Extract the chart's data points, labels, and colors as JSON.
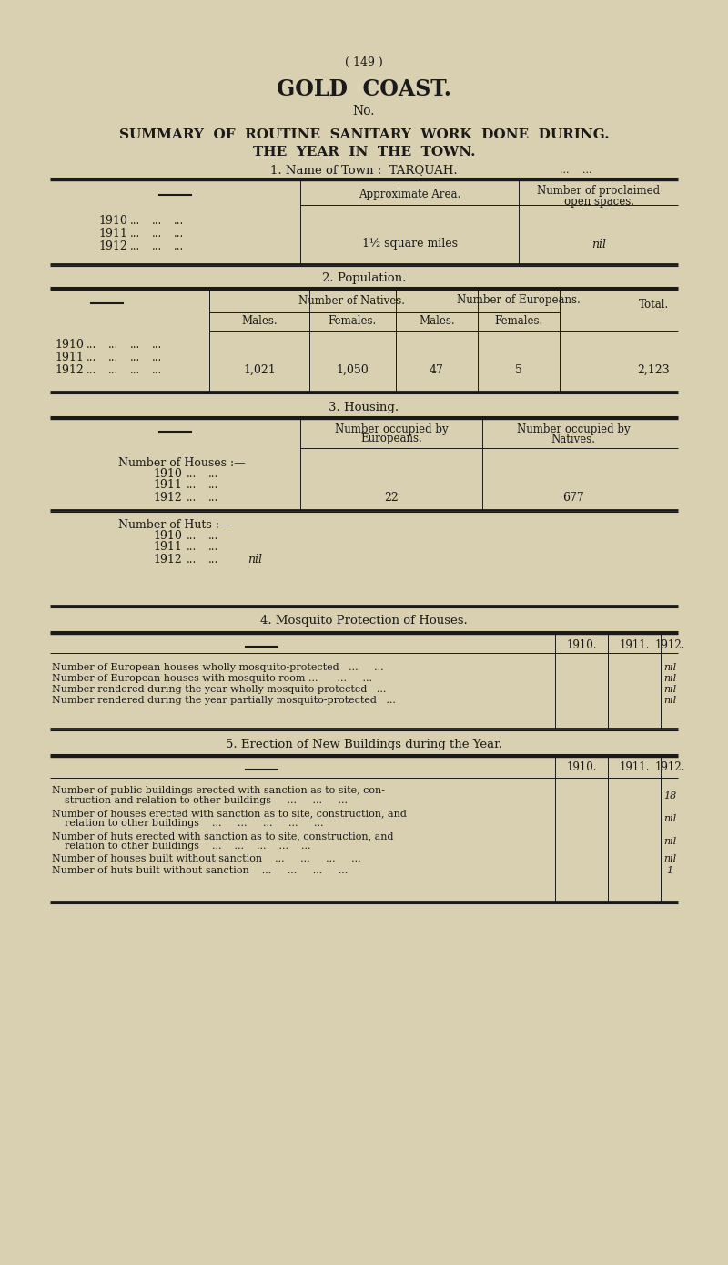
{
  "bg_color": "#d8d0b0",
  "text_color": "#1a1a1a",
  "page_number": "( 149 )",
  "title1": "GOLD  COAST.",
  "title2": "No.",
  "title3": "SUMMARY  OF  ROUTINE  SANITARY  WORK  DONE  DURING.",
  "title4": "THE  YEAR  IN  THE  TOWN.",
  "section1_header": "1. Name of Town :  TARQUAH.",
  "section2_header": "2. Population.",
  "section3_header": "3. Housing.",
  "section4_header": "4. Mosquito Protection of Houses.",
  "section5_header": "5. Erection of New Buildings during the Year.",
  "area_value": "1½ square miles",
  "proclaimed_value": "nil",
  "huts_1912": "nil",
  "houses_1912_euro": "22",
  "houses_1912_native": "677",
  "pop_values": [
    "1,021",
    "1,050",
    "47",
    "5",
    "2,123"
  ],
  "mosq_rows": [
    "Number of European houses wholly mosquito-protected   ...     ...",
    "Number of European houses with mosquito room ...      ...     ...",
    "Number rendered during the year wholly mosquito-protected   ...",
    "Number rendered during the year partially mosquito-protected   ..."
  ],
  "mosq_values": [
    "nil",
    "nil",
    "nil",
    "nil"
  ],
  "erect_row1a": "Number of public buildings erected with sanction as to site, con-",
  "erect_row1b": "    struction and relation to other buildings     ...     ...     ...",
  "erect_row2a": "Number of houses erected with sanction as to site, construction, and",
  "erect_row2b": "    relation to other buildings    ...     ...     ...     ...     ...",
  "erect_row3a": "Number of huts erected with sanction as to site, construction, and",
  "erect_row3b": "    relation to other buildings    ...    ...    ...    ...    ...",
  "erect_row4": "Number of houses built without sanction    ...     ...     ...     ...",
  "erect_row5": "Number of huts built without sanction    ...     ...     ...     ...",
  "erect_values": [
    "18",
    "nil",
    "nil",
    "nil",
    "1"
  ]
}
